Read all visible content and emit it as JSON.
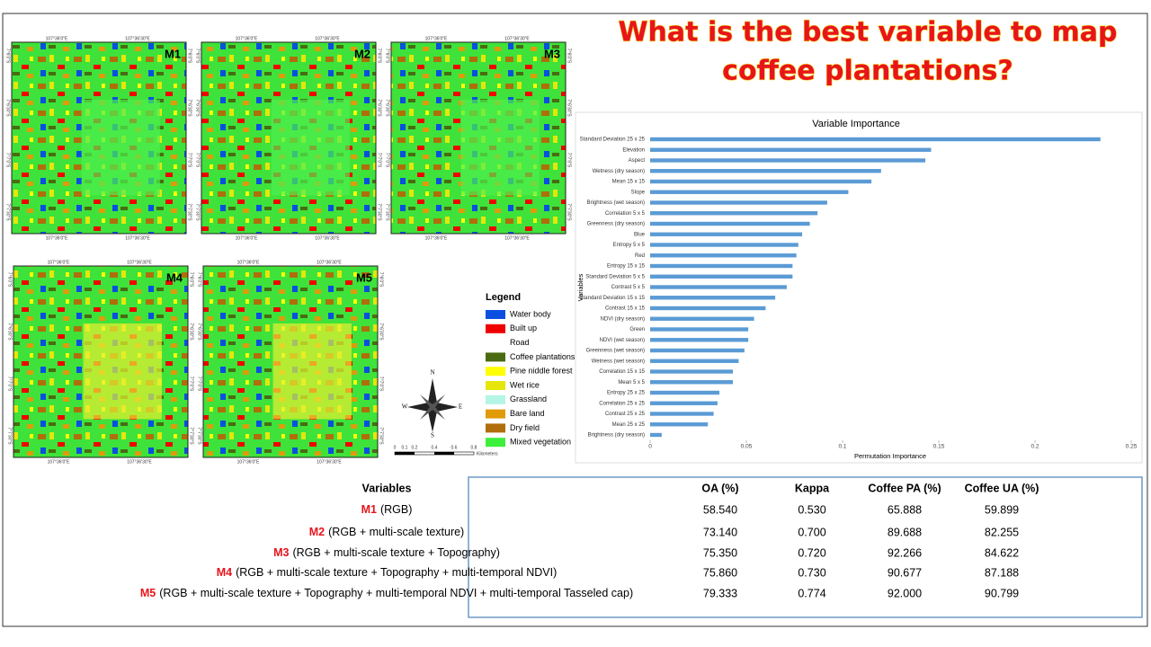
{
  "header": {
    "title": [
      "What is the best variable to map",
      "coffee plantations?"
    ]
  },
  "maps": [
    {
      "label": "M1"
    },
    {
      "label": "M2"
    },
    {
      "label": "M3"
    },
    {
      "label": "M4"
    },
    {
      "label": "M5"
    }
  ],
  "map_coords": {
    "lon": [
      "107°36'0\"E",
      "107°36'30\"E"
    ],
    "lat": [
      "7°6'0\"S",
      "7°6'30\"S",
      "7°7'0\"S",
      "7°7'30\"S"
    ]
  },
  "legend": {
    "title": "Legend",
    "items": [
      {
        "label": "Water body",
        "color": "#0a4fe0"
      },
      {
        "label": "Built up",
        "color": "#f00000"
      },
      {
        "label": "Road",
        "color": "#ffffff"
      },
      {
        "label": "Coffee plantations",
        "color": "#4a6b12"
      },
      {
        "label": "Pine niddle forest",
        "color": "#ffff00"
      },
      {
        "label": "Wet rice",
        "color": "#e6e60a"
      },
      {
        "label": "Grassland",
        "color": "#b4f5e6"
      },
      {
        "label": "Bare land",
        "color": "#e09a0a"
      },
      {
        "label": "Dry field",
        "color": "#b06e0a"
      },
      {
        "label": "Mixed vegetation",
        "color": "#3cf03c"
      }
    ]
  },
  "compass": {
    "n": "N",
    "e": "E",
    "s": "S",
    "w": "W"
  },
  "scale_bar": {
    "ticks": [
      "0",
      "0.1",
      "0.2",
      "0.4",
      "0.6",
      "0.8"
    ],
    "unit": "Kilometers"
  },
  "chart_data": {
    "type": "hbar",
    "title": "Variable Importance",
    "x_label": "Permutation Importance",
    "y_label": "Variables",
    "color": "#5b9bd5",
    "categories": [
      "Standard Deviation 25 x 25",
      "Elevation",
      "Aspect",
      "Wetness (dry season)",
      "Mean 15 x 15",
      "Slope",
      "Brightness (wet season)",
      "Correlation 5 x 5",
      "Greenness (dry season)",
      "Blue",
      "Entropy 5 x 5",
      "Red",
      "Entropy 15 x 15",
      "Standard Deviation 5 x 5",
      "Contrast 5 x 5",
      "Standard Deviation 15 x 15",
      "Contrast 15 x 15",
      "NDVI (dry season)",
      "Green",
      "NDVI (wet season)",
      "Greenness (wet season)",
      "Wetness (wet season)",
      "Correlation 15 x 15",
      "Mean 5 x 5",
      "Entropy 25 x 25",
      "Correlation 25 x 25",
      "Contrast 25 x 25",
      "Mean 25 x 25",
      "Brightness (dry season)"
    ],
    "values": [
      0.234,
      0.146,
      0.143,
      0.12,
      0.115,
      0.103,
      0.092,
      0.087,
      0.083,
      0.079,
      0.077,
      0.076,
      0.074,
      0.074,
      0.071,
      0.065,
      0.06,
      0.054,
      0.051,
      0.051,
      0.049,
      0.046,
      0.043,
      0.043,
      0.036,
      0.035,
      0.033,
      0.03,
      0.006
    ],
    "xlim": [
      0,
      0.25
    ],
    "xticks": [
      0,
      0.05,
      0.1,
      0.15,
      0.2,
      0.25
    ]
  },
  "table": {
    "columns": [
      "Variables",
      "OA (%)",
      "Kappa",
      "Coffee PA (%)",
      "Coffee UA (%)"
    ],
    "rows": [
      [
        "M1",
        "(RGB)",
        "58.540",
        "0.530",
        "65.888",
        "59.899"
      ],
      [
        "M2",
        "(RGB + multi-scale texture)",
        "73.140",
        "0.700",
        "89.688",
        "82.255"
      ],
      [
        "M3",
        "(RGB + multi-scale texture + Topography)",
        "75.350",
        "0.720",
        "92.266",
        "84.622"
      ],
      [
        "M4",
        "(RGB + multi-scale texture + Topography + multi-temporal NDVI)",
        "75.860",
        "0.730",
        "90.677",
        "87.188"
      ],
      [
        "M5",
        "(RGB + multi-scale texture + Topography + multi-temporal NDVI + multi-temporal Tasseled cap)",
        "79.333",
        "0.774",
        "92.000",
        "90.799"
      ]
    ]
  }
}
